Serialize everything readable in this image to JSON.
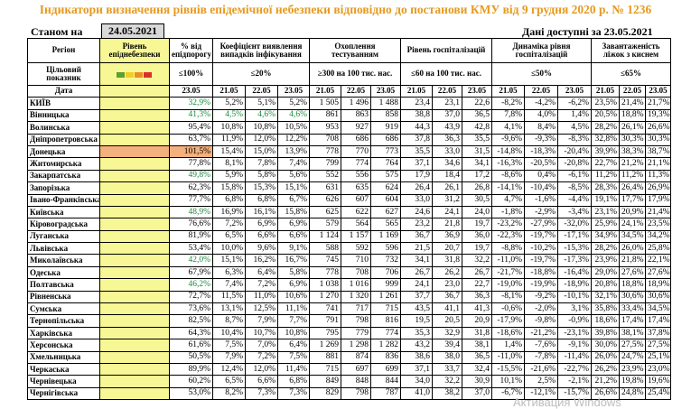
{
  "title": "Індикатори визначення рівнів епідемічної небезпеки відповідно до постанови КМУ від 9 грудня 2020 р. № 1236",
  "as_of_label": "Станом на",
  "as_of_date": "24.05.2021",
  "data_available": "Дані доступні за 23.05.2021",
  "headers": {
    "region": "Регіон",
    "target": "Цільовий показник",
    "date": "Дата",
    "level": "Рівень епіднебезпеки",
    "pct_threshold": "% від епідпорогу",
    "detect_coef": "Коефіцієнт виявлення випадків інфікування",
    "testing": "Охоплення тестуванням",
    "hosp_level": "Рівень госпіталізацій",
    "hosp_dynamics": "Динаміка рівня госпіталізацій",
    "oxygen_load": "Завантаженість ліжок з киснем"
  },
  "targets": {
    "pct": "≤100%",
    "detect": "≤20%",
    "testing": "≥300 на 100 тис. нас.",
    "hosp": "≤60 на 100 тис. нас.",
    "dyn": "≤50%",
    "oxy": "≤65%"
  },
  "dates": {
    "d23": "23.05",
    "d21": "21.05",
    "d22": "22.05"
  },
  "light_colors": [
    "#5aa02c",
    "#f2cf1f",
    "#f08a24",
    "#d9302c"
  ],
  "rows": [
    {
      "region": "КИЇВ",
      "level": "yellow",
      "pct": "32,9%",
      "pct_green": true,
      "c": [
        "5,2%",
        "5,1%",
        "5,2%"
      ],
      "t": [
        "1 505",
        "1 496",
        "1 488"
      ],
      "h": [
        "23,4",
        "23,1",
        "22,6"
      ],
      "d": [
        "-8,2%",
        "-4,2%",
        "-6,2%"
      ],
      "o": [
        "23,5%",
        "21,4%",
        "21,7%"
      ]
    },
    {
      "region": "Вінницька",
      "level": "yellow",
      "pct": "41,3%",
      "pct_green": true,
      "c_green": true,
      "c": [
        "4,5%",
        "4,6%",
        "4,6%"
      ],
      "t": [
        "861",
        "863",
        "858"
      ],
      "h": [
        "38,8",
        "37,0",
        "36,5"
      ],
      "d": [
        "7,8%",
        "4,0%",
        "1,4%"
      ],
      "o": [
        "20,5%",
        "18,8%",
        "19,3%"
      ]
    },
    {
      "region": "Волинська",
      "level": "yellow",
      "pct": "95,4%",
      "c": [
        "10,8%",
        "10,8%",
        "10,5%"
      ],
      "t": [
        "953",
        "927",
        "919"
      ],
      "h": [
        "44,3",
        "43,9",
        "42,8"
      ],
      "d": [
        "4,1%",
        "8,4%",
        "4,5%"
      ],
      "o": [
        "28,2%",
        "26,1%",
        "26,6%"
      ]
    },
    {
      "region": "Дніпропетровська",
      "level": "yellow",
      "pct": "63,7%",
      "c": [
        "11,9%",
        "12,0%",
        "12,2%"
      ],
      "t": [
        "708",
        "686",
        "686"
      ],
      "h": [
        "37,8",
        "36,3",
        "35,5"
      ],
      "d": [
        "-9,6%",
        "-9,3%",
        "-8,3%"
      ],
      "o": [
        "32,8%",
        "30,3%",
        "30,3%"
      ]
    },
    {
      "region": "Донецька",
      "level": "orange",
      "pct": "101,5%",
      "pct_orange": true,
      "c": [
        "15,4%",
        "15,0%",
        "13,9%"
      ],
      "t": [
        "778",
        "770",
        "773"
      ],
      "h": [
        "35,5",
        "33,0",
        "31,5"
      ],
      "d": [
        "-14,8%",
        "-18,3%",
        "-20,4%"
      ],
      "o": [
        "39,9%",
        "38,3%",
        "38,7%"
      ]
    },
    {
      "region": "Житомирська",
      "level": "yellow",
      "pct": "77,8%",
      "c": [
        "8,1%",
        "7,8%",
        "7,4%"
      ],
      "t": [
        "799",
        "774",
        "764"
      ],
      "h": [
        "37,1",
        "34,6",
        "34,1"
      ],
      "d": [
        "-16,3%",
        "-20,5%",
        "-20,8%"
      ],
      "o": [
        "22,7%",
        "21,2%",
        "21,1%"
      ]
    },
    {
      "region": "Закарпатська",
      "level": "yellow",
      "pct": "49,8%",
      "pct_green": true,
      "c": [
        "5,9%",
        "5,8%",
        "5,6%"
      ],
      "t": [
        "552",
        "556",
        "575"
      ],
      "h": [
        "17,9",
        "18,4",
        "17,2"
      ],
      "d": [
        "-8,6%",
        "0,4%",
        "-6,1%"
      ],
      "o": [
        "11,2%",
        "11,2%",
        "11,3%"
      ]
    },
    {
      "region": "Запорізька",
      "level": "yellow",
      "pct": "62,3%",
      "c": [
        "15,8%",
        "15,3%",
        "15,1%"
      ],
      "t": [
        "631",
        "635",
        "624"
      ],
      "h": [
        "26,4",
        "26,1",
        "26,8"
      ],
      "d": [
        "-14,1%",
        "-10,4%",
        "-8,5%"
      ],
      "o": [
        "28,3%",
        "26,4%",
        "26,9%"
      ]
    },
    {
      "region": "Івано-Франківська",
      "level": "yellow",
      "pct": "77,7%",
      "c": [
        "6,8%",
        "6,8%",
        "6,7%"
      ],
      "t": [
        "626",
        "607",
        "604"
      ],
      "h": [
        "33,0",
        "31,2",
        "30,5"
      ],
      "d": [
        "4,7%",
        "-1,6%",
        "-4,4%"
      ],
      "o": [
        "19,1%",
        "17,7%",
        "17,9%"
      ]
    },
    {
      "region": "Київська",
      "level": "yellow",
      "pct": "48,9%",
      "pct_green": true,
      "c": [
        "16,9%",
        "16,1%",
        "15,8%"
      ],
      "t": [
        "625",
        "622",
        "627"
      ],
      "h": [
        "24,6",
        "24,1",
        "24,0"
      ],
      "d": [
        "-1,8%",
        "-2,9%",
        "-3,4%"
      ],
      "o": [
        "23,1%",
        "20,9%",
        "21,4%"
      ]
    },
    {
      "region": "Кіровоградська",
      "level": "yellow",
      "pct": "76,6%",
      "c": [
        "7,2%",
        "6,9%",
        "6,9%"
      ],
      "t": [
        "579",
        "564",
        "565"
      ],
      "h": [
        "23,2",
        "21,8",
        "19,7"
      ],
      "d": [
        "-23,2%",
        "-27,9%",
        "-32,0%"
      ],
      "o": [
        "25,9%",
        "24,1%",
        "23,5%"
      ]
    },
    {
      "region": "Луганська",
      "level": "yellow",
      "pct": "81,9%",
      "c": [
        "6,5%",
        "6,6%",
        "6,6%"
      ],
      "t": [
        "1 124",
        "1 157",
        "1 169"
      ],
      "h": [
        "36,7",
        "36,9",
        "36,0"
      ],
      "d": [
        "-22,3%",
        "-19,7%",
        "-17,1%"
      ],
      "o": [
        "34,9%",
        "34,5%",
        "34,2%"
      ]
    },
    {
      "region": "Львівська",
      "level": "yellow",
      "pct": "53,4%",
      "c": [
        "10,0%",
        "9,6%",
        "9,1%"
      ],
      "t": [
        "588",
        "592",
        "596"
      ],
      "h": [
        "21,5",
        "20,7",
        "19,7"
      ],
      "d": [
        "-8,8%",
        "-10,2%",
        "-15,3%"
      ],
      "o": [
        "28,2%",
        "26,0%",
        "25,8%"
      ]
    },
    {
      "region": "Миколаївська",
      "level": "yellow",
      "pct": "42,0%",
      "pct_green": true,
      "c": [
        "15,1%",
        "16,2%",
        "16,7%"
      ],
      "t": [
        "745",
        "710",
        "732"
      ],
      "h": [
        "34,1",
        "31,8",
        "32,2"
      ],
      "d": [
        "-11,0%",
        "-19,7%",
        "-17,3%"
      ],
      "o": [
        "23,9%",
        "21,8%",
        "22,1%"
      ]
    },
    {
      "region": "Одеська",
      "level": "yellow",
      "pct": "67,9%",
      "c": [
        "6,3%",
        "6,4%",
        "5,8%"
      ],
      "t": [
        "778",
        "708",
        "706"
      ],
      "h": [
        "26,7",
        "26,2",
        "26,7"
      ],
      "d": [
        "-21,7%",
        "-18,8%",
        "-16,4%"
      ],
      "o": [
        "29,0%",
        "27,6%",
        "27,6%"
      ]
    },
    {
      "region": "Полтавська",
      "level": "yellow",
      "pct": "46,2%",
      "pct_green": true,
      "c": [
        "7,4%",
        "7,2%",
        "6,9%"
      ],
      "t": [
        "1 038",
        "1 016",
        "999"
      ],
      "h": [
        "24,1",
        "23,0",
        "22,7"
      ],
      "d": [
        "-19,0%",
        "-19,9%",
        "-18,9%"
      ],
      "o": [
        "20,8%",
        "18,8%",
        "18,9%"
      ]
    },
    {
      "region": "Рівненська",
      "level": "yellow",
      "pct": "72,7%",
      "c": [
        "11,5%",
        "11,0%",
        "10,6%"
      ],
      "t": [
        "1 270",
        "1 320",
        "1 261"
      ],
      "h": [
        "37,7",
        "36,7",
        "36,3"
      ],
      "d": [
        "-8,1%",
        "-9,2%",
        "-10,1%"
      ],
      "o": [
        "32,1%",
        "30,6%",
        "30,6%"
      ]
    },
    {
      "region": "Сумська",
      "level": "yellow",
      "pct": "73,6%",
      "c": [
        "13,1%",
        "12,5%",
        "11,1%"
      ],
      "t": [
        "741",
        "717",
        "715"
      ],
      "h": [
        "43,5",
        "41,1",
        "41,3"
      ],
      "d": [
        "-0,6%",
        "-2,0%",
        "3,1%"
      ],
      "o": [
        "35,8%",
        "33,4%",
        "34,5%"
      ]
    },
    {
      "region": "Тернопільська",
      "level": "yellow",
      "pct": "82,5%",
      "c": [
        "8,7%",
        "7,9%",
        "7,7%"
      ],
      "t": [
        "791",
        "798",
        "816"
      ],
      "h": [
        "19,5",
        "20,5",
        "20,9"
      ],
      "d": [
        "-17,9%",
        "-9,8%",
        "-0,9%"
      ],
      "o": [
        "18,6%",
        "17,4%",
        "17,4%"
      ]
    },
    {
      "region": "Харківська",
      "level": "yellow",
      "pct": "64,3%",
      "c": [
        "10,4%",
        "10,7%",
        "10,8%"
      ],
      "t": [
        "795",
        "779",
        "774"
      ],
      "h": [
        "35,3",
        "32,9",
        "31,8"
      ],
      "d": [
        "-18,6%",
        "-21,2%",
        "-23,1%"
      ],
      "o": [
        "39,8%",
        "38,1%",
        "37,8%"
      ]
    },
    {
      "region": "Херсонська",
      "level": "yellow",
      "pct": "61,6%",
      "c": [
        "7,5%",
        "7,0%",
        "6,4%"
      ],
      "t": [
        "1 269",
        "1 298",
        "1 282"
      ],
      "h": [
        "43,2",
        "39,4",
        "38,1"
      ],
      "d": [
        "1,4%",
        "-7,6%",
        "-9,1%"
      ],
      "o": [
        "30,0%",
        "27,5%",
        "27,5%"
      ]
    },
    {
      "region": "Хмельницька",
      "level": "yellow",
      "pct": "50,5%",
      "c": [
        "7,9%",
        "7,2%",
        "7,5%"
      ],
      "t": [
        "881",
        "874",
        "836"
      ],
      "h": [
        "38,6",
        "38,0",
        "36,5"
      ],
      "d": [
        "-11,0%",
        "-7,8%",
        "-11,4%"
      ],
      "o": [
        "26,0%",
        "24,7%",
        "25,1%"
      ]
    },
    {
      "region": "Черкаська",
      "level": "yellow",
      "pct": "89,9%",
      "c": [
        "12,4%",
        "12,0%",
        "11,4%"
      ],
      "t": [
        "715",
        "697",
        "699"
      ],
      "h": [
        "37,1",
        "33,7",
        "32,4"
      ],
      "d": [
        "-15,5%",
        "-21,6%",
        "-22,7%"
      ],
      "o": [
        "26,2%",
        "23,9%",
        "23,0%"
      ]
    },
    {
      "region": "Чернівецька",
      "level": "yellow",
      "pct": "60,2%",
      "c": [
        "6,5%",
        "6,6%",
        "6,8%"
      ],
      "t": [
        "849",
        "848",
        "844"
      ],
      "h": [
        "34,0",
        "32,2",
        "30,9"
      ],
      "d": [
        "10,1%",
        "2,5%",
        "-2,1%"
      ],
      "o": [
        "21,2%",
        "19,8%",
        "19,6%"
      ]
    },
    {
      "region": "Чернігівська",
      "level": "yellow",
      "pct": "53,0%",
      "c": [
        "8,2%",
        "7,3%",
        "7,3%"
      ],
      "t": [
        "829",
        "798",
        "787"
      ],
      "h": [
        "41,0",
        "38,2",
        "37,0"
      ],
      "d": [
        "-6,7%",
        "-12,1%",
        "-15,7%"
      ],
      "o": [
        "26,6%",
        "24,8%",
        "25,4%"
      ]
    }
  ],
  "watermark": "Активация Windows"
}
